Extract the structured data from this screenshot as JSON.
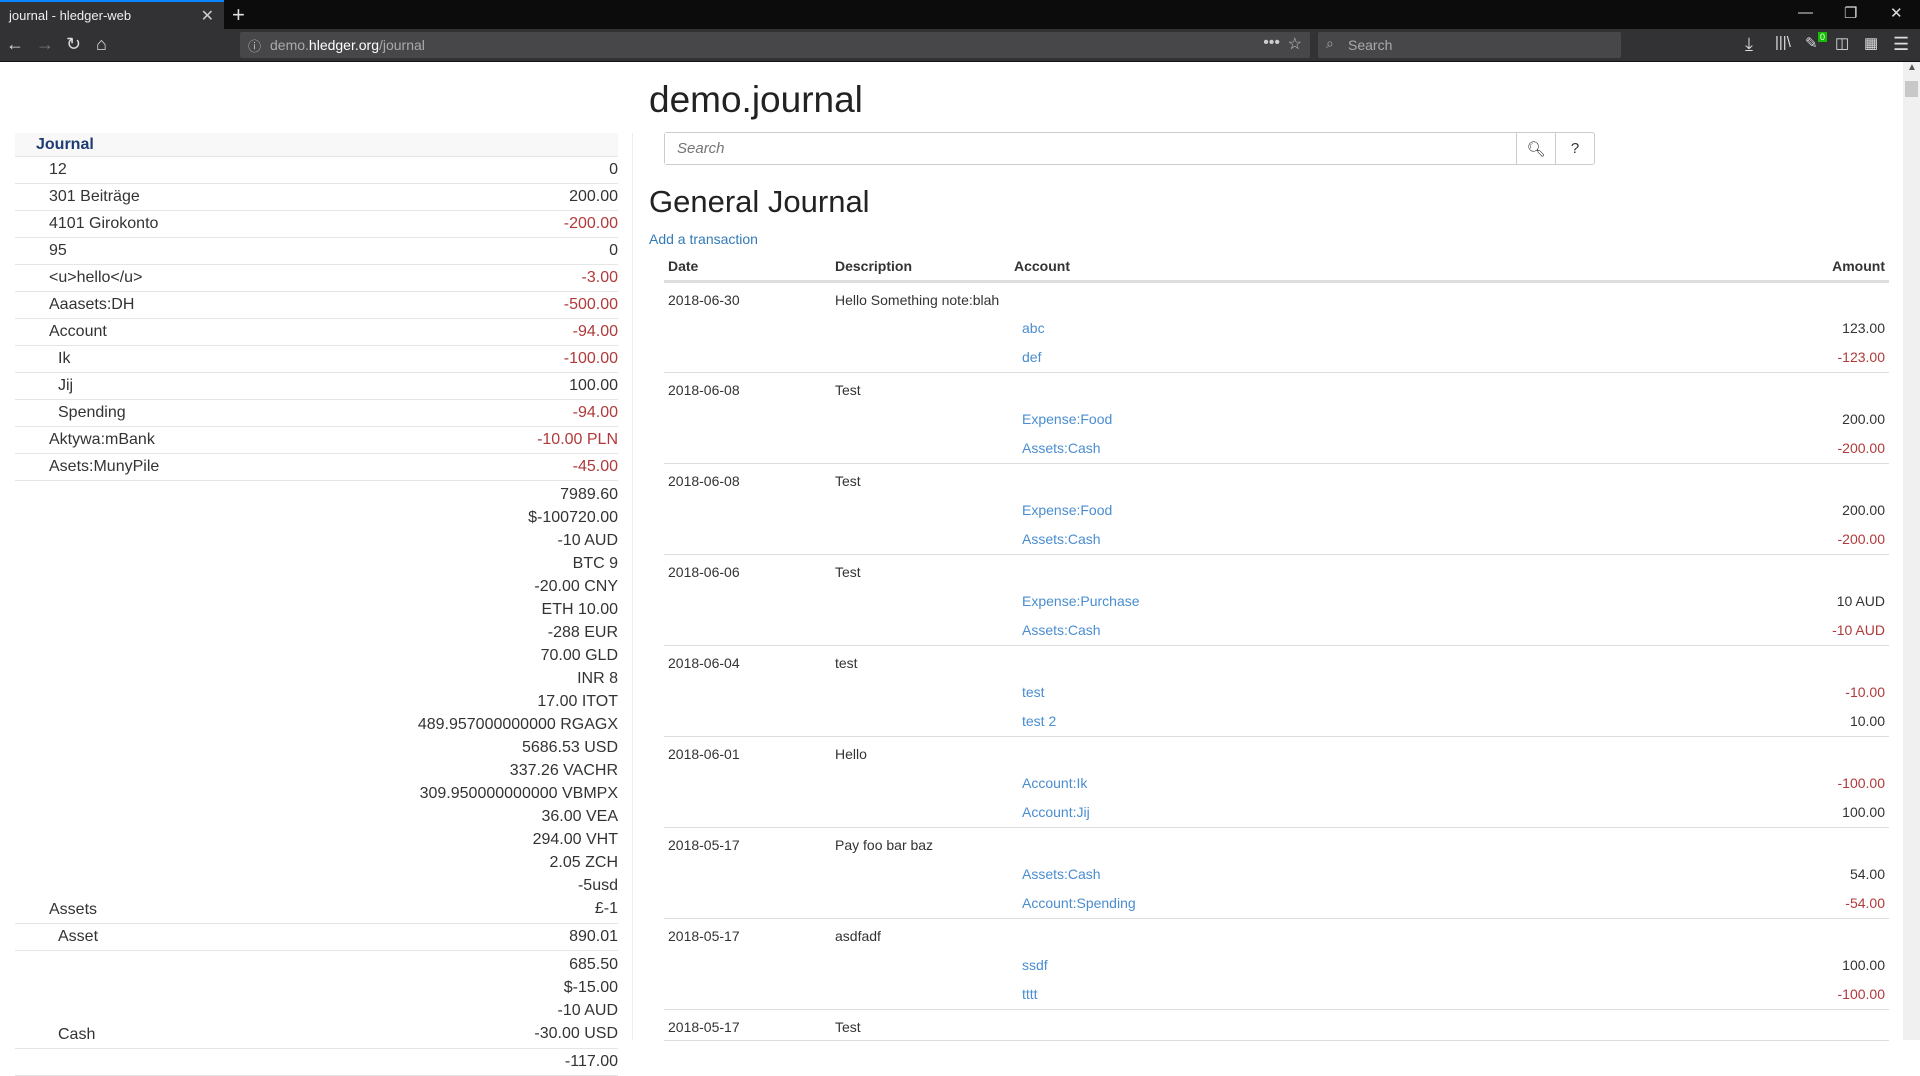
{
  "browser": {
    "tab_title": "journal - hledger-web",
    "url_host_prefix": "demo.",
    "url_host": "hledger.org",
    "url_path": "/journal",
    "search_placeholder": "Search",
    "badge": "0"
  },
  "sidebar": {
    "title": "Journal",
    "rows": [
      {
        "label": "12",
        "level": 0,
        "amounts": [
          "0"
        ],
        "neg": false
      },
      {
        "label": "301 Beiträge",
        "level": 0,
        "amounts": [
          "200.00"
        ],
        "neg": false
      },
      {
        "label": "4101 Girokonto",
        "level": 0,
        "amounts": [
          "-200.00"
        ],
        "neg": true
      },
      {
        "label": "95",
        "level": 0,
        "amounts": [
          "0"
        ],
        "neg": false
      },
      {
        "label": "<u>hello</u>",
        "level": 0,
        "amounts": [
          "-3.00"
        ],
        "neg": true
      },
      {
        "label": "Aaasets:DH",
        "level": 0,
        "amounts": [
          "-500.00"
        ],
        "neg": true
      },
      {
        "label": "Account",
        "level": 0,
        "amounts": [
          "-94.00"
        ],
        "neg": true
      },
      {
        "label": "Ik",
        "level": 1,
        "amounts": [
          "-100.00"
        ],
        "neg": true
      },
      {
        "label": "Jij",
        "level": 1,
        "amounts": [
          "100.00"
        ],
        "neg": false
      },
      {
        "label": "Spending",
        "level": 1,
        "amounts": [
          "-94.00"
        ],
        "neg": true
      },
      {
        "label": "Aktywa:mBank",
        "level": 0,
        "amounts": [
          "-10.00 PLN"
        ],
        "neg": true
      },
      {
        "label": "Asets:MunyPile",
        "level": 0,
        "amounts": [
          "-45.00"
        ],
        "neg": true
      },
      {
        "label": "Assets",
        "level": 0,
        "amounts": [
          "7989.60",
          "$-100720.00",
          "-10 AUD",
          "BTC 9",
          "-20.00 CNY",
          "ETH 10.00",
          "-288 EUR",
          "70.00 GLD",
          "INR 8",
          "17.00 ITOT",
          "489.957000000000 RGAGX",
          "5686.53 USD",
          "337.26 VACHR",
          "309.950000000000 VBMPX",
          "36.00 VEA",
          "294.00 VHT",
          "2.05 ZCH",
          "-5usd",
          "£-1"
        ],
        "neg": false
      },
      {
        "label": "Asset",
        "level": 1,
        "amounts": [
          "890.01"
        ],
        "neg": false
      },
      {
        "label": "Cash",
        "level": 1,
        "amounts": [
          "685.50",
          "$-15.00",
          "-10 AUD",
          "-30.00 USD"
        ],
        "neg": false
      },
      {
        "label": "",
        "level": 1,
        "amounts": [
          "-117.00"
        ],
        "neg": false
      }
    ]
  },
  "main": {
    "title": "demo.journal",
    "search_placeholder": "Search",
    "help_label": "?",
    "heading": "General Journal",
    "add_link": "Add a transaction",
    "columns": {
      "date": "Date",
      "description": "Description",
      "account": "Account",
      "amount": "Amount"
    },
    "transactions": [
      {
        "date": "2018-06-30",
        "description": "Hello Something note:blah",
        "postings": [
          {
            "account": "abc",
            "amount": "123.00",
            "neg": false
          },
          {
            "account": "def",
            "amount": "-123.00",
            "neg": true
          }
        ]
      },
      {
        "date": "2018-06-08",
        "description": "Test",
        "postings": [
          {
            "account": "Expense:Food",
            "amount": "200.00",
            "neg": false
          },
          {
            "account": "Assets:Cash",
            "amount": "-200.00",
            "neg": true
          }
        ]
      },
      {
        "date": "2018-06-08",
        "description": "Test",
        "postings": [
          {
            "account": "Expense:Food",
            "amount": "200.00",
            "neg": false
          },
          {
            "account": "Assets:Cash",
            "amount": "-200.00",
            "neg": true
          }
        ]
      },
      {
        "date": "2018-06-06",
        "description": "Test",
        "postings": [
          {
            "account": "Expense:Purchase",
            "amount": "10 AUD",
            "neg": false
          },
          {
            "account": "Assets:Cash",
            "amount": "-10 AUD",
            "neg": true
          }
        ]
      },
      {
        "date": "2018-06-04",
        "description": "test",
        "postings": [
          {
            "account": "test",
            "amount": "-10.00",
            "neg": true
          },
          {
            "account": "test 2",
            "amount": "10.00",
            "neg": false
          }
        ]
      },
      {
        "date": "2018-06-01",
        "description": "Hello",
        "postings": [
          {
            "account": "Account:Ik",
            "amount": "-100.00",
            "neg": true
          },
          {
            "account": "Account:Jij",
            "amount": "100.00",
            "neg": false
          }
        ]
      },
      {
        "date": "2018-05-17",
        "description": "Pay foo bar baz",
        "postings": [
          {
            "account": "Assets:Cash",
            "amount": "54.00",
            "neg": false
          },
          {
            "account": "Account:Spending",
            "amount": "-54.00",
            "neg": true
          }
        ]
      },
      {
        "date": "2018-05-17",
        "description": "asdfadf",
        "postings": [
          {
            "account": "ssdf",
            "amount": "100.00",
            "neg": false
          },
          {
            "account": "tttt",
            "amount": "-100.00",
            "neg": true
          }
        ]
      },
      {
        "date": "2018-05-17",
        "description": "Test",
        "postings": []
      }
    ]
  },
  "colors": {
    "link": "#4a8dd0",
    "negative": "#b03a3a",
    "sidebar_title": "#1f3c73",
    "tab_accent": "#0a84ff"
  }
}
